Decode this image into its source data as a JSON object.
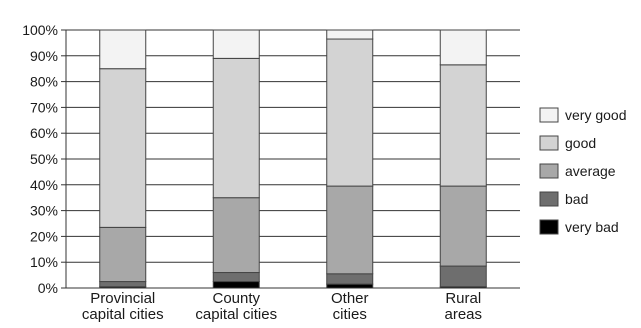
{
  "chart_data": {
    "type": "bar",
    "stacked": true,
    "percent_stacked": true,
    "title": "",
    "xlabel": "",
    "ylabel": "",
    "ylim": [
      0,
      100
    ],
    "y_ticks": [
      "0%",
      "10%",
      "20%",
      "30%",
      "40%",
      "50%",
      "60%",
      "70%",
      "80%",
      "90%",
      "100%"
    ],
    "grid": true,
    "legend_position": "right",
    "categories": [
      [
        "Provincial",
        "capital cities"
      ],
      [
        "County",
        "capital cities"
      ],
      [
        "Other",
        "cities"
      ],
      [
        "Rural",
        "areas"
      ]
    ],
    "series": [
      {
        "name": "very bad",
        "color": "#000000",
        "values": [
          0.5,
          2.5,
          1.5,
          0.5
        ]
      },
      {
        "name": "bad",
        "color": "#6e6e6e",
        "values": [
          2.0,
          3.5,
          4.0,
          8.0
        ]
      },
      {
        "name": "average",
        "color": "#a8a8a8",
        "values": [
          21.0,
          29.0,
          34.0,
          31.0
        ]
      },
      {
        "name": "good",
        "color": "#d3d3d3",
        "values": [
          61.5,
          54.0,
          57.0,
          47.0
        ]
      },
      {
        "name": "very good",
        "color": "#f3f3f3",
        "values": [
          15.0,
          11.0,
          3.5,
          13.5
        ]
      }
    ],
    "legend_order": [
      "very good",
      "good",
      "average",
      "bad",
      "very bad"
    ]
  }
}
